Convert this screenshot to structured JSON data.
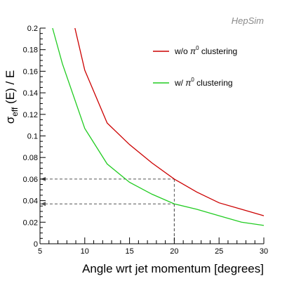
{
  "watermark": "HepSim",
  "chart_data": {
    "type": "line",
    "xlabel": "Angle wrt jet momentum  [degrees]",
    "ylabel_parts": {
      "sigma": "σ",
      "sub": "eff",
      "rest": " (E) / E"
    },
    "xlim": [
      5,
      30
    ],
    "ylim": [
      0,
      0.2
    ],
    "x_ticks": [
      5,
      10,
      15,
      20,
      25,
      30
    ],
    "y_ticks": [
      0,
      0.02,
      0.04,
      0.06,
      0.08,
      0.1,
      0.12,
      0.14,
      0.16,
      0.18,
      0.2
    ],
    "grid": false,
    "legend_position": "top-right",
    "series": [
      {
        "name": "w/o π⁰ clustering",
        "legend_parts": {
          "pre": "w/o ",
          "sym": "π",
          "sup": "0",
          "post": " clustering"
        },
        "color": "#cc0000",
        "x": [
          8.9,
          10,
          12.5,
          15,
          17.5,
          20,
          22.5,
          25,
          27.5,
          30
        ],
        "y": [
          0.2,
          0.161,
          0.112,
          0.092,
          0.075,
          0.06,
          0.048,
          0.038,
          0.032,
          0.026
        ]
      },
      {
        "name": "w/ π⁰ clustering",
        "legend_parts": {
          "pre": "w/ ",
          "sym": "π",
          "sup": "0",
          "post": " clustering"
        },
        "color": "#22cc22",
        "x": [
          6.4,
          7.5,
          10,
          12.5,
          15,
          17.5,
          20,
          22.5,
          25,
          27.5,
          30
        ],
        "y": [
          0.2,
          0.167,
          0.107,
          0.074,
          0.057,
          0.046,
          0.037,
          0.032,
          0.026,
          0.02,
          0.017
        ]
      }
    ],
    "reference_lines": [
      {
        "x": 20,
        "y": 0.06
      },
      {
        "x": 20,
        "y": 0.037
      }
    ]
  }
}
